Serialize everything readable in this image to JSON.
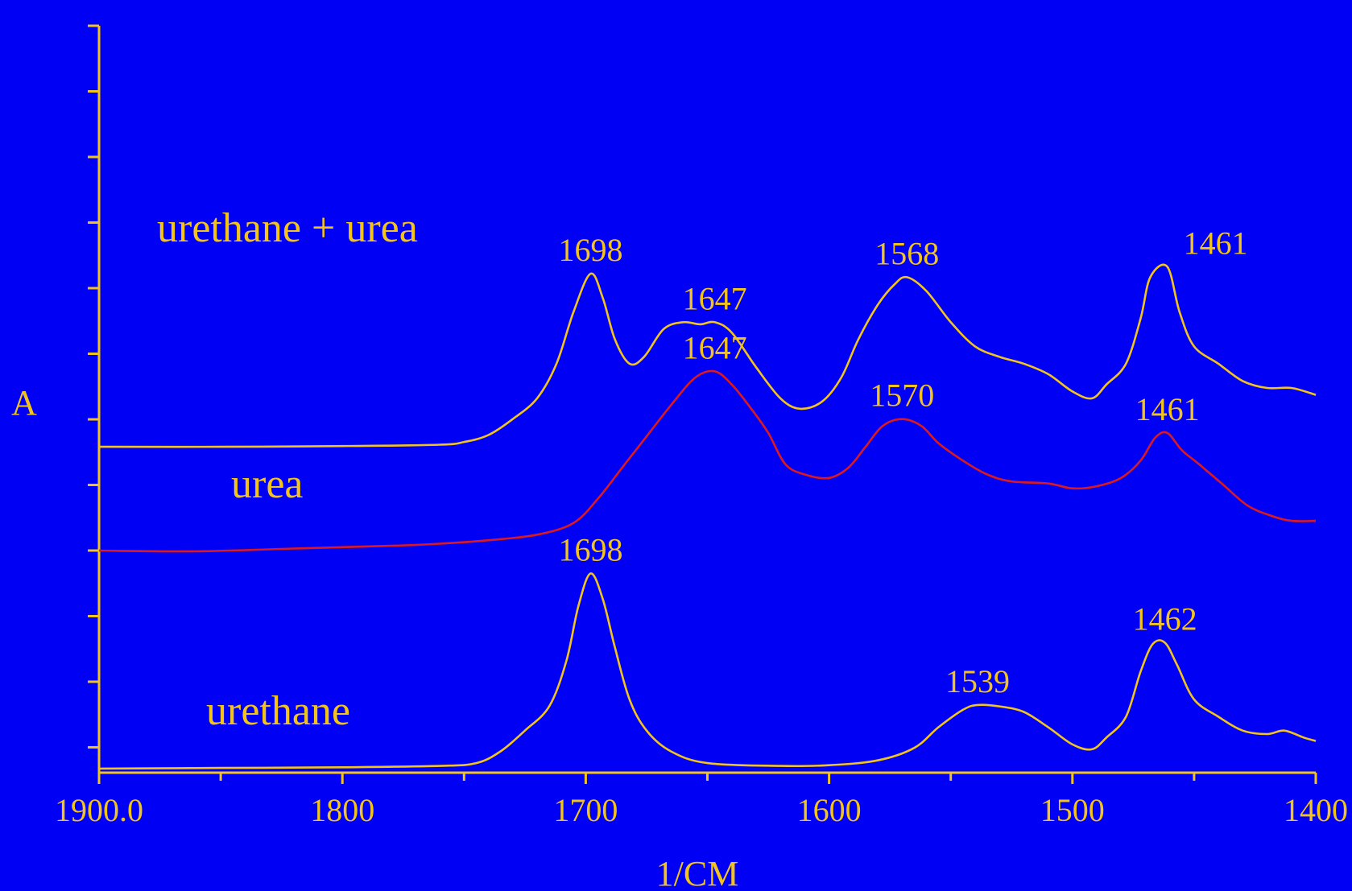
{
  "chart_data": {
    "type": "line",
    "xlabel": "1/CM",
    "ylabel": "A",
    "xlim": [
      1900,
      1400
    ],
    "x_reversed": true,
    "x_ticks": [
      "1900.0",
      "1800",
      "1700",
      "1600",
      "1500",
      "1400"
    ],
    "y_ticks_labeled": false,
    "grid": false,
    "background_color": "#0000f5",
    "axis_color": "#f2c31a",
    "series": [
      {
        "name": "urethane + urea",
        "color": "#f2c31a",
        "points": [
          [
            1900,
            4.65
          ],
          [
            1850,
            4.65
          ],
          [
            1800,
            4.66
          ],
          [
            1760,
            4.68
          ],
          [
            1750,
            4.72
          ],
          [
            1740,
            4.82
          ],
          [
            1730,
            5.05
          ],
          [
            1720,
            5.35
          ],
          [
            1712,
            5.85
          ],
          [
            1705,
            6.6
          ],
          [
            1698,
            7.15
          ],
          [
            1693,
            6.8
          ],
          [
            1688,
            6.2
          ],
          [
            1682,
            5.85
          ],
          [
            1676,
            5.95
          ],
          [
            1668,
            6.35
          ],
          [
            1660,
            6.45
          ],
          [
            1653,
            6.42
          ],
          [
            1647,
            6.45
          ],
          [
            1640,
            6.3
          ],
          [
            1630,
            5.8
          ],
          [
            1620,
            5.35
          ],
          [
            1612,
            5.2
          ],
          [
            1603,
            5.3
          ],
          [
            1595,
            5.65
          ],
          [
            1588,
            6.2
          ],
          [
            1580,
            6.7
          ],
          [
            1573,
            7.0
          ],
          [
            1568,
            7.1
          ],
          [
            1560,
            6.9
          ],
          [
            1550,
            6.45
          ],
          [
            1540,
            6.1
          ],
          [
            1530,
            5.95
          ],
          [
            1520,
            5.85
          ],
          [
            1510,
            5.7
          ],
          [
            1500,
            5.45
          ],
          [
            1492,
            5.35
          ],
          [
            1486,
            5.55
          ],
          [
            1478,
            5.85
          ],
          [
            1472,
            6.5
          ],
          [
            1468,
            7.1
          ],
          [
            1461,
            7.25
          ],
          [
            1456,
            6.6
          ],
          [
            1450,
            6.1
          ],
          [
            1440,
            5.85
          ],
          [
            1430,
            5.6
          ],
          [
            1420,
            5.5
          ],
          [
            1410,
            5.5
          ],
          [
            1400,
            5.4
          ]
        ]
      },
      {
        "name": "urea",
        "color": "#dc1a1e",
        "points": [
          [
            1900,
            3.15
          ],
          [
            1860,
            3.14
          ],
          [
            1820,
            3.18
          ],
          [
            1780,
            3.22
          ],
          [
            1760,
            3.25
          ],
          [
            1740,
            3.3
          ],
          [
            1720,
            3.38
          ],
          [
            1705,
            3.55
          ],
          [
            1695,
            3.9
          ],
          [
            1685,
            4.35
          ],
          [
            1675,
            4.8
          ],
          [
            1665,
            5.25
          ],
          [
            1655,
            5.65
          ],
          [
            1647,
            5.74
          ],
          [
            1640,
            5.55
          ],
          [
            1632,
            5.2
          ],
          [
            1625,
            4.85
          ],
          [
            1618,
            4.4
          ],
          [
            1610,
            4.25
          ],
          [
            1600,
            4.2
          ],
          [
            1592,
            4.35
          ],
          [
            1585,
            4.65
          ],
          [
            1578,
            4.95
          ],
          [
            1570,
            5.05
          ],
          [
            1562,
            4.95
          ],
          [
            1555,
            4.7
          ],
          [
            1545,
            4.45
          ],
          [
            1535,
            4.25
          ],
          [
            1525,
            4.15
          ],
          [
            1510,
            4.12
          ],
          [
            1500,
            4.05
          ],
          [
            1490,
            4.08
          ],
          [
            1480,
            4.2
          ],
          [
            1472,
            4.45
          ],
          [
            1466,
            4.78
          ],
          [
            1461,
            4.85
          ],
          [
            1455,
            4.6
          ],
          [
            1448,
            4.4
          ],
          [
            1438,
            4.1
          ],
          [
            1428,
            3.8
          ],
          [
            1418,
            3.65
          ],
          [
            1410,
            3.58
          ],
          [
            1400,
            3.58
          ]
        ]
      },
      {
        "name": "urethane",
        "color": "#f2c31a",
        "points": [
          [
            1900,
            0.0
          ],
          [
            1850,
            0.01
          ],
          [
            1800,
            0.02
          ],
          [
            1760,
            0.04
          ],
          [
            1745,
            0.08
          ],
          [
            1735,
            0.25
          ],
          [
            1725,
            0.55
          ],
          [
            1715,
            0.9
          ],
          [
            1708,
            1.55
          ],
          [
            1703,
            2.35
          ],
          [
            1698,
            2.82
          ],
          [
            1693,
            2.45
          ],
          [
            1688,
            1.75
          ],
          [
            1682,
            1.0
          ],
          [
            1675,
            0.55
          ],
          [
            1665,
            0.25
          ],
          [
            1650,
            0.08
          ],
          [
            1620,
            0.04
          ],
          [
            1600,
            0.05
          ],
          [
            1580,
            0.12
          ],
          [
            1565,
            0.3
          ],
          [
            1555,
            0.6
          ],
          [
            1545,
            0.85
          ],
          [
            1539,
            0.92
          ],
          [
            1530,
            0.9
          ],
          [
            1520,
            0.82
          ],
          [
            1510,
            0.6
          ],
          [
            1500,
            0.35
          ],
          [
            1492,
            0.28
          ],
          [
            1486,
            0.45
          ],
          [
            1478,
            0.75
          ],
          [
            1472,
            1.4
          ],
          [
            1467,
            1.8
          ],
          [
            1462,
            1.82
          ],
          [
            1457,
            1.5
          ],
          [
            1450,
            1.0
          ],
          [
            1440,
            0.75
          ],
          [
            1430,
            0.55
          ],
          [
            1420,
            0.5
          ],
          [
            1413,
            0.55
          ],
          [
            1405,
            0.45
          ],
          [
            1400,
            0.4
          ]
        ]
      }
    ],
    "series_labels": [
      {
        "text": "urethane + urea"
      },
      {
        "text": "urea"
      },
      {
        "text": "urethane"
      }
    ],
    "annotations": [
      {
        "text": "1698",
        "x": 1698,
        "series": 0
      },
      {
        "text": "1647",
        "x": 1647,
        "series": 0
      },
      {
        "text": "1568",
        "x": 1568,
        "series": 0
      },
      {
        "text": "1461",
        "x": 1461,
        "series": 0
      },
      {
        "text": "1647",
        "x": 1647,
        "series": 1
      },
      {
        "text": "1570",
        "x": 1570,
        "series": 1
      },
      {
        "text": "1461",
        "x": 1461,
        "series": 1
      },
      {
        "text": "1698",
        "x": 1698,
        "series": 2
      },
      {
        "text": "1539",
        "x": 1539,
        "series": 2
      },
      {
        "text": "1462",
        "x": 1462,
        "series": 2
      }
    ]
  }
}
